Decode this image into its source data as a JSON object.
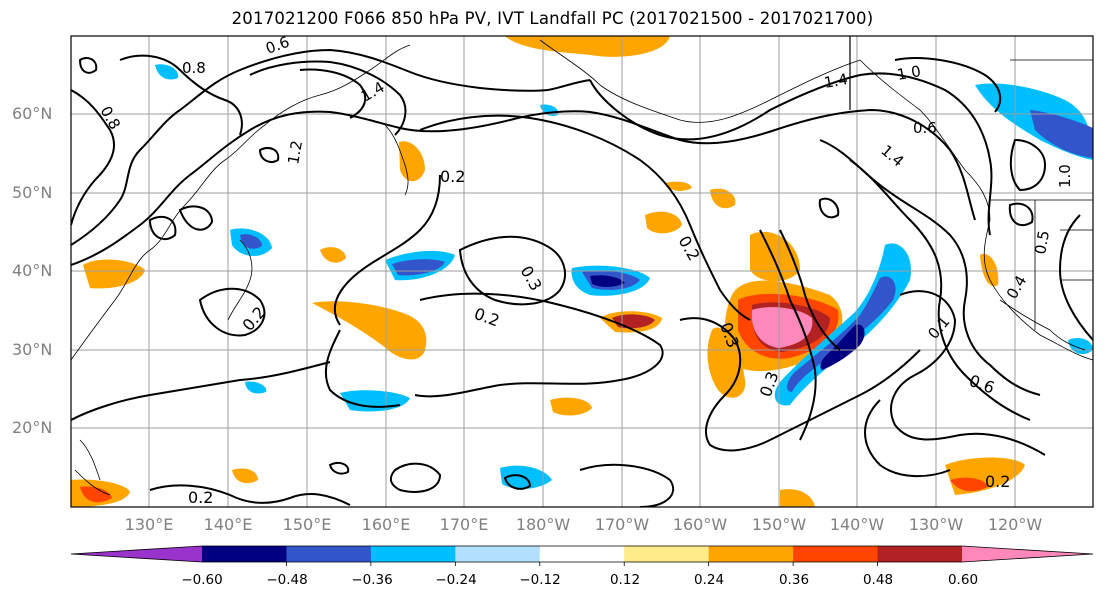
{
  "title": "2017021200 F066 850 hPa PV, IVT Landfall PC (2017021500 - 2017021700)",
  "lat_ticks": [
    "60°N",
    "50°N",
    "40°N",
    "30°N",
    "20°N"
  ],
  "lon_ticks": [
    "130°E",
    "140°E",
    "150°E",
    "160°E",
    "170°E",
    "180°W",
    "170°W",
    "160°W",
    "150°W",
    "140°W",
    "130°W",
    "120°W"
  ],
  "contour_labels": [
    "0.8",
    "0.6",
    "1.4",
    "1.2",
    "0.8",
    "0.2",
    "0.3",
    "0.2",
    "0.2",
    "0.3",
    "0.2",
    "0.3",
    "1.4",
    "1.0",
    "0.6",
    "1.4",
    "0.4",
    "0.5",
    "0.1",
    "0.6",
    "0.2",
    "0.2",
    "1.0"
  ],
  "colorbar": {
    "ticks": [
      "−0.60",
      "−0.48",
      "−0.36",
      "−0.24",
      "−0.12",
      "0.12",
      "0.24",
      "0.36",
      "0.48",
      "0.60"
    ],
    "colors": [
      "#9a33cc",
      "#000080",
      "#3355cc",
      "#00bfff",
      "#b3e0ff",
      "#ffffff",
      "#ffeb8a",
      "#ffa500",
      "#ff4500",
      "#b22222",
      "#ff88bb"
    ]
  }
}
